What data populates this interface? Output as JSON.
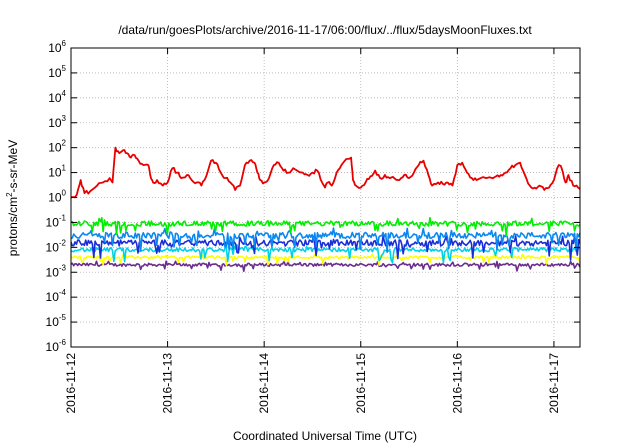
{
  "chart_data": {
    "type": "line",
    "title": "/data/run/goesPlots/archive/2016-11-17/06:00/flux/../flux/5daysMoonFluxes.txt",
    "xlabel": "Coordinated Universal Time (UTC)",
    "ylabel": {
      "prefix": "protons/cm",
      "exponent": "2",
      "suffix": "-s-sr-MeV"
    },
    "yscale": "log",
    "ylim_exponents": [
      -6,
      6
    ],
    "y_tick_exponents": [
      -6,
      -5,
      -4,
      -3,
      -2,
      -1,
      0,
      1,
      2,
      3,
      4,
      5,
      6
    ],
    "y_tick_base": "10",
    "xlim_days": [
      0,
      5.27
    ],
    "x_ticks": [
      {
        "day": 0,
        "label": "2016-11-12"
      },
      {
        "day": 1,
        "label": "2016-11-13"
      },
      {
        "day": 2,
        "label": "2016-11-14"
      },
      {
        "day": 3,
        "label": "2016-11-15"
      },
      {
        "day": 4,
        "label": "2016-11-16"
      },
      {
        "day": 5,
        "label": "2016-11-17"
      }
    ],
    "grid": true,
    "series": [
      {
        "color": "#6b2d8c",
        "base": 0.002,
        "noise": 0.06,
        "dip": 0.15
      },
      {
        "color": "#ffff00",
        "base": 0.004,
        "noise": 0.05,
        "dip": 0.2
      },
      {
        "color": "#00d0e8",
        "base": 0.008,
        "noise": 0.08,
        "dip": 0.35
      },
      {
        "color": "#1a2ed8",
        "base": 0.015,
        "noise": 0.12,
        "dip": 0.45
      },
      {
        "color": "#0a88f0",
        "base": 0.03,
        "noise": 0.12,
        "dip": 0.4
      },
      {
        "color": "#00ee00",
        "base": 0.09,
        "noise": 0.1,
        "dip": 0.3
      },
      {
        "color": "#e80000",
        "points": [
          [
            0.0,
            1.0
          ],
          [
            0.06,
            1.3
          ],
          [
            0.1,
            5
          ],
          [
            0.14,
            1.5
          ],
          [
            0.2,
            1.8
          ],
          [
            0.27,
            3
          ],
          [
            0.33,
            4
          ],
          [
            0.4,
            6
          ],
          [
            0.43,
            4
          ],
          [
            0.46,
            100
          ],
          [
            0.5,
            60
          ],
          [
            0.54,
            80
          ],
          [
            0.58,
            60
          ],
          [
            0.62,
            40
          ],
          [
            0.66,
            50
          ],
          [
            0.7,
            30
          ],
          [
            0.75,
            20
          ],
          [
            0.8,
            20
          ],
          [
            0.82,
            8
          ],
          [
            0.85,
            4
          ],
          [
            0.89,
            5
          ],
          [
            0.95,
            3
          ],
          [
            1.0,
            4
          ],
          [
            1.05,
            15
          ],
          [
            1.1,
            10
          ],
          [
            1.14,
            6
          ],
          [
            1.2,
            8
          ],
          [
            1.25,
            5
          ],
          [
            1.3,
            4
          ],
          [
            1.35,
            3
          ],
          [
            1.4,
            7
          ],
          [
            1.45,
            30
          ],
          [
            1.5,
            25
          ],
          [
            1.55,
            10
          ],
          [
            1.6,
            6
          ],
          [
            1.65,
            4
          ],
          [
            1.7,
            2
          ],
          [
            1.75,
            3
          ],
          [
            1.8,
            20
          ],
          [
            1.85,
            30
          ],
          [
            1.9,
            25
          ],
          [
            1.93,
            10
          ],
          [
            1.96,
            5
          ],
          [
            2.0,
            4
          ],
          [
            2.05,
            6
          ],
          [
            2.1,
            20
          ],
          [
            2.15,
            25
          ],
          [
            2.2,
            12
          ],
          [
            2.25,
            10
          ],
          [
            2.3,
            15
          ],
          [
            2.4,
            10
          ],
          [
            2.45,
            8
          ],
          [
            2.5,
            10
          ],
          [
            2.55,
            12
          ],
          [
            2.6,
            4
          ],
          [
            2.63,
            2.5
          ],
          [
            2.66,
            4
          ],
          [
            2.7,
            3
          ],
          [
            2.75,
            10
          ],
          [
            2.8,
            20
          ],
          [
            2.85,
            35
          ],
          [
            2.9,
            40
          ],
          [
            2.92,
            5
          ],
          [
            2.95,
            3
          ],
          [
            3.0,
            2.5
          ],
          [
            3.05,
            4
          ],
          [
            3.1,
            7
          ],
          [
            3.15,
            12
          ],
          [
            3.2,
            6
          ],
          [
            3.25,
            8
          ],
          [
            3.3,
            6
          ],
          [
            3.4,
            5
          ],
          [
            3.45,
            8
          ],
          [
            3.5,
            6
          ],
          [
            3.55,
            10
          ],
          [
            3.6,
            20
          ],
          [
            3.65,
            30
          ],
          [
            3.7,
            8
          ],
          [
            3.74,
            3
          ],
          [
            3.8,
            4
          ],
          [
            3.85,
            3.5
          ],
          [
            3.9,
            4
          ],
          [
            3.95,
            3
          ],
          [
            4.0,
            20
          ],
          [
            4.05,
            25
          ],
          [
            4.1,
            10
          ],
          [
            4.15,
            6
          ],
          [
            4.2,
            5
          ],
          [
            4.3,
            6
          ],
          [
            4.4,
            7
          ],
          [
            4.45,
            8
          ],
          [
            4.5,
            10
          ],
          [
            4.55,
            15
          ],
          [
            4.6,
            20
          ],
          [
            4.65,
            25
          ],
          [
            4.7,
            8
          ],
          [
            4.75,
            3
          ],
          [
            4.8,
            2.5
          ],
          [
            4.85,
            3
          ],
          [
            4.9,
            2
          ],
          [
            4.95,
            2.5
          ],
          [
            5.0,
            5
          ],
          [
            5.05,
            20
          ],
          [
            5.08,
            15
          ],
          [
            5.12,
            4
          ],
          [
            5.15,
            8
          ],
          [
            5.2,
            3
          ],
          [
            5.25,
            2.5
          ],
          [
            5.27,
            2.2
          ]
        ]
      }
    ]
  }
}
